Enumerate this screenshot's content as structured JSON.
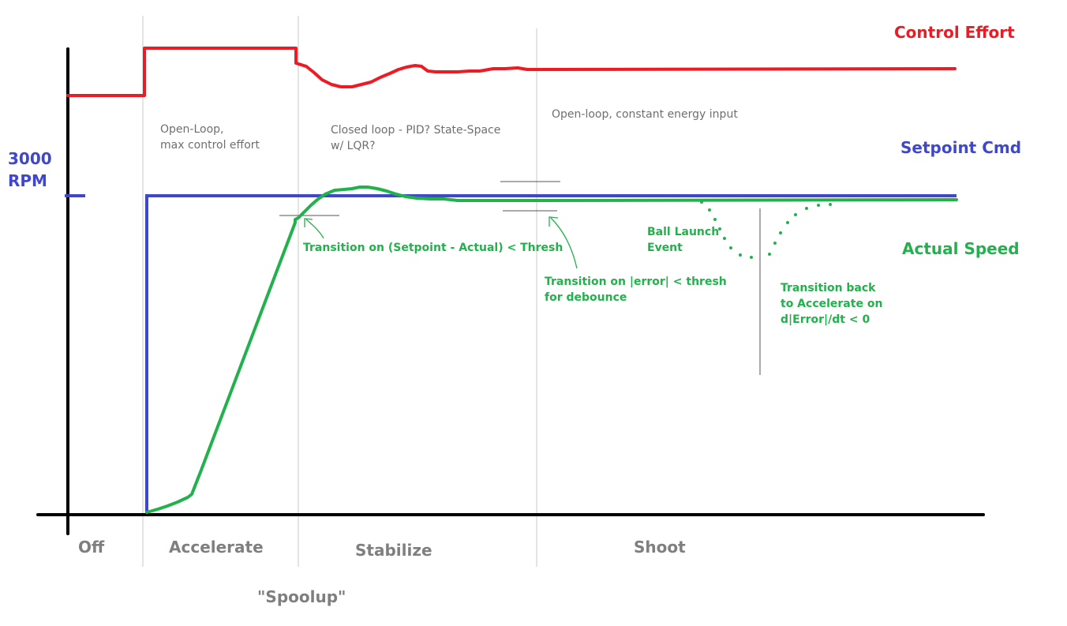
{
  "colors": {
    "control_effort": "#ed1c24",
    "setpoint": "#3f48cc",
    "actual": "#22b14c",
    "axis": "#000000",
    "divider": "#c8c8c8",
    "thresh_line": "#555555",
    "state_label": "#7f7f7f"
  },
  "series_labels": {
    "control_effort": "Control Effort",
    "setpoint": "Setpoint Cmd",
    "actual": "Actual Speed"
  },
  "y_axis": {
    "rpm_line1": "3000",
    "rpm_line2": "RPM"
  },
  "states": {
    "off": "Off",
    "accelerate": "Accelerate",
    "stabilize": "Stabilize",
    "shoot": "Shoot",
    "spoolup": "\"Spoolup\""
  },
  "notes": {
    "open_loop_1": "Open-Loop,",
    "open_loop_2": "max control effort",
    "closed_loop_1": "Closed loop - PID? State-Space",
    "closed_loop_2": "w/ LQR?",
    "open_loop_const": "Open-loop, constant energy input",
    "transition_1": "Transition on (Setpoint - Actual) < Thresh",
    "transition_2a": "Transition on |error| < thresh",
    "transition_2b": "for debounce",
    "ball_launch_1": "Ball Launch",
    "ball_launch_2": "Event",
    "transition_back_1": "Transition back",
    "transition_back_2": "to Accelerate on",
    "transition_back_3": "d|Error|/dt < 0"
  }
}
